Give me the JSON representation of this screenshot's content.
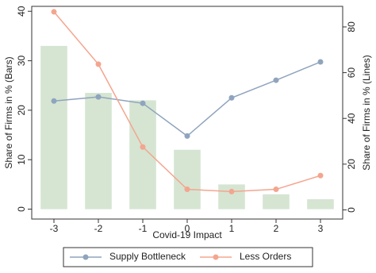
{
  "chart_data": {
    "type": "bar-line",
    "x_label": "Covid-19 Impact",
    "y_label": "Share of Firms in % (Bars)",
    "y2_label": "Share of Firms in % (Lines)",
    "x": [
      -3,
      -2,
      -1,
      0,
      1,
      2,
      3
    ],
    "xlim": [
      -3.5,
      3.5
    ],
    "xticks": [
      -3,
      -2,
      -1,
      0,
      1,
      2,
      3
    ],
    "ylim": [
      -2,
      41
    ],
    "yticks": [
      0,
      10,
      20,
      30,
      40
    ],
    "y2lim": [
      -4,
      89
    ],
    "y2ticks": [
      0,
      20,
      40,
      60,
      80
    ],
    "bars": {
      "color": "#d5e5d2",
      "values": [
        33,
        23.5,
        22,
        12,
        5,
        3,
        2
      ]
    },
    "series": [
      {
        "name": "Supply Bottleneck",
        "color": "#8fa4bd",
        "axis": "y2",
        "values": [
          47.6,
          49.4,
          46.6,
          32.3,
          49,
          56.7,
          64.7
        ]
      },
      {
        "name": "Less Orders",
        "color": "#f4a58f",
        "axis": "y2",
        "values": [
          86.6,
          63.7,
          27.5,
          9,
          8,
          9,
          15
        ]
      }
    ]
  }
}
